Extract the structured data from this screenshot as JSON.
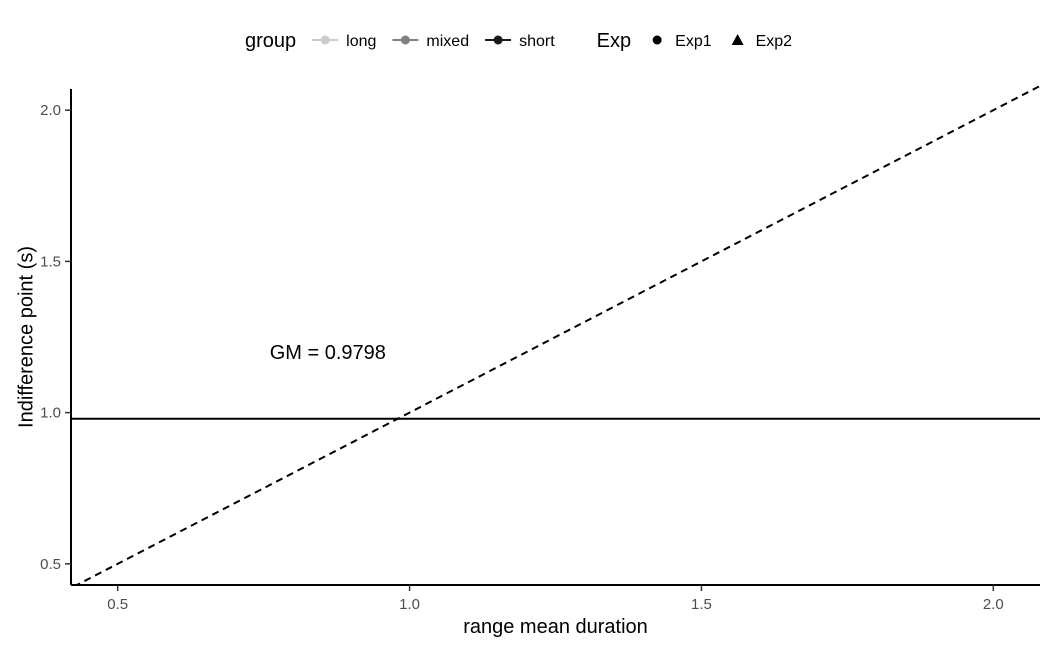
{
  "chart_data": {
    "type": "line",
    "title": "",
    "xlabel": "range mean duration",
    "ylabel": "Indifference point (s)",
    "xlim": [
      0.42,
      2.08
    ],
    "ylim": [
      0.43,
      2.07
    ],
    "x_ticks": [
      0.5,
      1.0,
      1.5,
      2.0
    ],
    "x_tick_labels": [
      "0.5",
      "1.0",
      "1.5",
      "2.0"
    ],
    "y_ticks": [
      0.5,
      1.0,
      1.5,
      2.0
    ],
    "y_tick_labels": [
      "0.5",
      "1.0",
      "1.5",
      "2.0"
    ],
    "grid": false,
    "legend_position": "top",
    "legends": [
      {
        "title": "group",
        "entries": [
          {
            "label": "long",
            "color": "#cccccc"
          },
          {
            "label": "mixed",
            "color": "#808080"
          },
          {
            "label": "short",
            "color": "#1a1a1a"
          }
        ]
      },
      {
        "title": "Exp",
        "entries": [
          {
            "label": "Exp1",
            "shape": "circle"
          },
          {
            "label": "Exp2",
            "shape": "triangle"
          }
        ]
      }
    ],
    "reference_lines": [
      {
        "kind": "horizontal",
        "y": 0.9798,
        "style": "solid",
        "color": "#000000"
      },
      {
        "kind": "identity",
        "slope": 1,
        "intercept": 0,
        "style": "dashed",
        "color": "#000000"
      }
    ],
    "annotations": [
      {
        "text": "GM = 0.9798",
        "x": 0.86,
        "y": 1.2
      }
    ],
    "series": []
  }
}
